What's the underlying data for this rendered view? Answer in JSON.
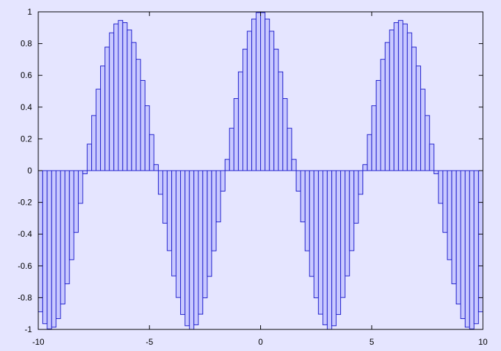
{
  "chart_data": {
    "type": "bar",
    "function": "cos(x)",
    "x_range": [
      -10,
      10
    ],
    "ylim": [
      -1,
      1
    ],
    "bar_width": 0.2,
    "x_ticks": [
      -10,
      -5,
      0,
      5,
      10
    ],
    "y_ticks": [
      -1,
      -0.8,
      -0.6,
      -0.4,
      -0.2,
      0,
      0.2,
      0.4,
      0.6,
      0.8,
      1
    ],
    "x_tick_labels": [
      "-10",
      "-5",
      "0",
      "5",
      "10"
    ],
    "y_tick_labels": [
      "-1",
      "-0.8",
      "-0.6",
      "-0.4",
      "-0.2",
      "0",
      "0.2",
      "0.4",
      "0.6",
      "0.8",
      "1"
    ],
    "x": [
      -9.9,
      -9.7,
      -9.5,
      -9.3,
      -9.1,
      -8.9,
      -8.7,
      -8.5,
      -8.3,
      -8.1,
      -7.9,
      -7.7,
      -7.5,
      -7.3,
      -7.1,
      -6.9,
      -6.7,
      -6.5,
      -6.3,
      -6.1,
      -5.9,
      -5.7,
      -5.5,
      -5.3,
      -5.1,
      -4.9,
      -4.7,
      -4.5,
      -4.3,
      -4.1,
      -3.9,
      -3.7,
      -3.5,
      -3.3,
      -3.1,
      -2.9,
      -2.7,
      -2.5,
      -2.3,
      -2.1,
      -1.9,
      -1.7,
      -1.5,
      -1.3,
      -1.1,
      -0.9,
      -0.7,
      -0.5,
      -0.3,
      -0.1,
      0.1,
      0.3,
      0.5,
      0.7,
      0.9,
      1.1,
      1.3,
      1.5,
      1.7,
      1.9,
      2.1,
      2.3,
      2.5,
      2.7,
      2.9,
      3.1,
      3.3,
      3.5,
      3.7,
      3.9,
      4.1,
      4.3,
      4.5,
      4.7,
      4.9,
      5.1,
      5.3,
      5.5,
      5.7,
      5.9,
      6.1,
      6.3,
      6.5,
      6.7,
      6.9,
      7.1,
      7.3,
      7.5,
      7.7,
      7.9,
      8.1,
      8.3,
      8.5,
      8.7,
      8.9,
      9.1,
      9.3,
      9.5,
      9.7,
      9.9
    ],
    "values": [
      -0.889,
      -0.964,
      -0.997,
      -0.986,
      -0.932,
      -0.84,
      -0.713,
      -0.561,
      -0.389,
      -0.206,
      -0.02,
      0.167,
      0.347,
      0.513,
      0.659,
      0.778,
      0.868,
      0.924,
      0.946,
      0.932,
      0.886,
      0.807,
      0.701,
      0.568,
      0.409,
      0.227,
      0.038,
      -0.149,
      -0.331,
      -0.504,
      -0.663,
      -0.799,
      -0.906,
      -0.977,
      -1.0,
      -0.971,
      -0.904,
      -0.801,
      -0.666,
      -0.505,
      -0.323,
      -0.129,
      0.071,
      0.267,
      0.454,
      0.622,
      0.765,
      0.878,
      0.955,
      0.995,
      0.995,
      0.955,
      0.878,
      0.765,
      0.622,
      0.454,
      0.267,
      0.071,
      -0.129,
      -0.323,
      -0.505,
      -0.666,
      -0.801,
      -0.904,
      -0.971,
      -1.0,
      -0.977,
      -0.906,
      -0.799,
      -0.663,
      -0.504,
      -0.331,
      -0.149,
      0.038,
      0.227,
      0.409,
      0.568,
      0.701,
      0.807,
      0.886,
      0.932,
      0.946,
      0.924,
      0.868,
      0.778,
      0.659,
      0.513,
      0.347,
      0.167,
      -0.02,
      -0.206,
      -0.389,
      -0.561,
      -0.713,
      -0.84,
      -0.932,
      -0.986,
      -0.997,
      -0.964,
      -0.889
    ],
    "grid": false,
    "title": "",
    "xlabel": "",
    "ylabel": ""
  },
  "colors": {
    "background": "#e5e5ff",
    "bar_fill": "#c9c9ff",
    "bar_stroke": "#1f1fcc",
    "axis": "#000000"
  }
}
